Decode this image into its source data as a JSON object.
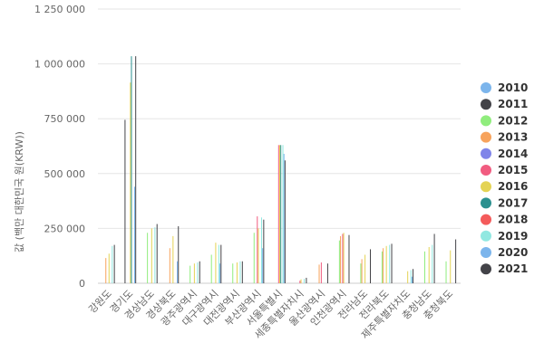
{
  "chart_data": {
    "type": "bar",
    "ylabel": "값 (백만 대한민국 원(KRW))",
    "ylim": [
      0,
      1250000
    ],
    "yticks": [
      0,
      250000,
      500000,
      750000,
      1000000,
      1250000
    ],
    "ytick_labels": [
      "0",
      "250 000",
      "500 000",
      "750 000",
      "1 000 000",
      "1 250 000"
    ],
    "grid": true,
    "legend_position": "right",
    "categories": [
      "강원도",
      "경기도",
      "경상남도",
      "경상북도",
      "광주광역시",
      "대구광역시",
      "대전광역시",
      "부산광역시",
      "서울특별시",
      "세종특별자치시",
      "울산광역시",
      "인천광역시",
      "전라남도",
      "전라북도",
      "제주특별자치도",
      "충청남도",
      "충청북도"
    ],
    "series": [
      {
        "name": "2010",
        "color": "#7cb5ec",
        "values": [
          null,
          null,
          null,
          null,
          null,
          null,
          null,
          null,
          null,
          null,
          null,
          null,
          null,
          null,
          null,
          null,
          null
        ]
      },
      {
        "name": "2011",
        "color": "#434348",
        "values": [
          null,
          745000,
          null,
          null,
          null,
          null,
          null,
          null,
          null,
          null,
          null,
          null,
          null,
          null,
          null,
          null,
          null
        ]
      },
      {
        "name": "2012",
        "color": "#90ed7d",
        "values": [
          null,
          null,
          230000,
          null,
          80000,
          130000,
          90000,
          230000,
          null,
          null,
          null,
          195000,
          90000,
          145000,
          null,
          145000,
          100000
        ]
      },
      {
        "name": "2013",
        "color": "#f7a35c",
        "values": [
          115000,
          null,
          null,
          160000,
          null,
          null,
          null,
          null,
          null,
          null,
          85000,
          215000,
          110000,
          160000,
          null,
          null,
          null
        ]
      },
      {
        "name": "2014",
        "color": "#8085e9",
        "values": [
          null,
          null,
          null,
          null,
          null,
          null,
          null,
          null,
          null,
          null,
          null,
          null,
          null,
          null,
          null,
          null,
          null
        ]
      },
      {
        "name": "2015",
        "color": "#f15c80",
        "values": [
          null,
          null,
          null,
          null,
          null,
          null,
          null,
          305000,
          630000,
          12000,
          95000,
          225000,
          null,
          null,
          null,
          null,
          null
        ]
      },
      {
        "name": "2016",
        "color": "#e4d354",
        "values": [
          135000,
          915000,
          250000,
          215000,
          90000,
          185000,
          95000,
          250000,
          630000,
          18000,
          null,
          230000,
          130000,
          170000,
          55000,
          165000,
          150000
        ]
      },
      {
        "name": "2017",
        "color": "#2b908f",
        "values": [
          null,
          1035000,
          null,
          null,
          null,
          null,
          null,
          null,
          630000,
          null,
          null,
          null,
          null,
          null,
          null,
          null,
          null
        ]
      },
      {
        "name": "2018",
        "color": "#f45b5b",
        "values": [
          null,
          null,
          null,
          null,
          null,
          null,
          null,
          null,
          null,
          null,
          null,
          null,
          null,
          null,
          null,
          null,
          null
        ]
      },
      {
        "name": "2019",
        "color": "#91e8e1",
        "values": [
          170000,
          null,
          255000,
          null,
          95000,
          175000,
          100000,
          300000,
          630000,
          20000,
          null,
          null,
          null,
          175000,
          60000,
          175000,
          null
        ]
      },
      {
        "name": "2020",
        "color": "#7cb5ec",
        "values": [
          null,
          440000,
          null,
          100000,
          null,
          90000,
          null,
          160000,
          590000,
          null,
          null,
          null,
          null,
          null,
          30000,
          null,
          null
        ]
      },
      {
        "name": "2021",
        "color": "#434348",
        "values": [
          175000,
          1035000,
          270000,
          260000,
          100000,
          175000,
          100000,
          290000,
          560000,
          25000,
          90000,
          220000,
          155000,
          180000,
          65000,
          225000,
          200000
        ]
      }
    ]
  }
}
